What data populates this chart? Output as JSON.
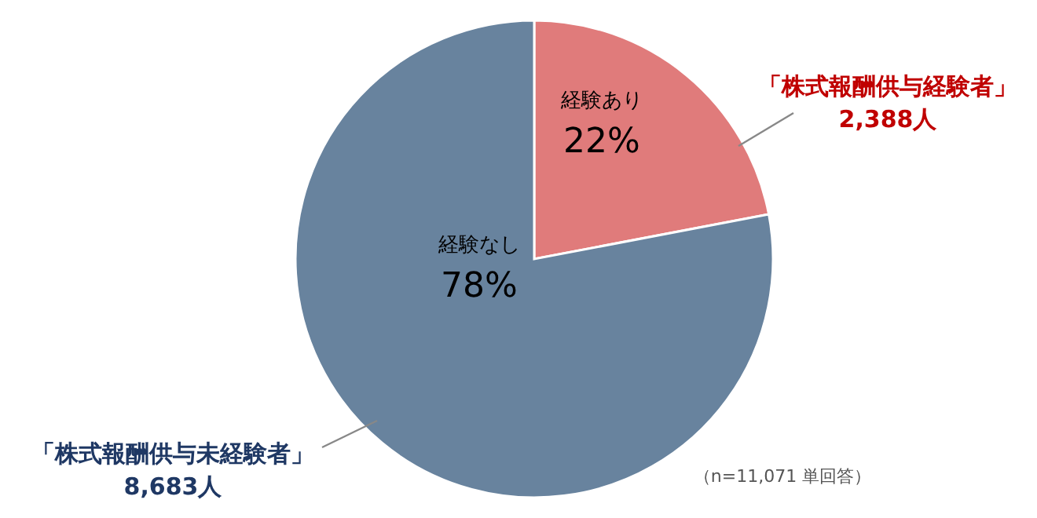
{
  "chart_data": {
    "type": "pie",
    "categories": [
      "経験あり",
      "経験なし"
    ],
    "values": [
      22,
      78
    ],
    "value_labels": [
      "22%",
      "78%"
    ],
    "colors": [
      "#e07b7b",
      "#68839e"
    ],
    "annotations": [
      "「株式報酬供与経験者」\n2,388人",
      "「株式報酬供与未経験者」\n8,683人",
      "（n=11,071 単回答）"
    ]
  }
}
